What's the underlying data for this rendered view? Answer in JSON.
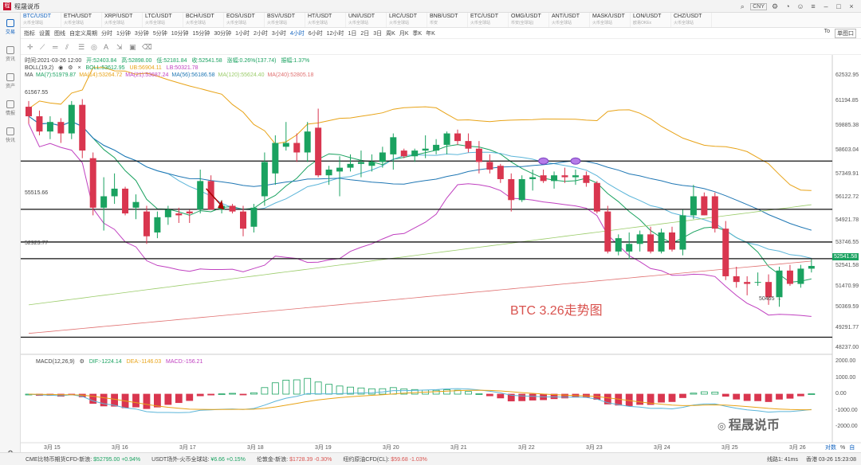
{
  "window": {
    "title": "程晟说币",
    "currency": "CNY"
  },
  "tickers": [
    {
      "symbol": "BTC/USDT",
      "sub": "火币全球站"
    },
    {
      "symbol": "ETH/USDT",
      "sub": "火币全球站"
    },
    {
      "symbol": "XRP/USDT",
      "sub": "火币全球站"
    },
    {
      "symbol": "LTC/USDT",
      "sub": "火币全球站"
    },
    {
      "symbol": "BCH/USDT",
      "sub": "火币全球站"
    },
    {
      "symbol": "EOS/USDT",
      "sub": "火币全球站"
    },
    {
      "symbol": "BSV/USDT",
      "sub": "火币全球站"
    },
    {
      "symbol": "HT/USDT",
      "sub": "火币全球站"
    },
    {
      "symbol": "UNI/USDT",
      "sub": "火币全球站"
    },
    {
      "symbol": "LRC/USDT",
      "sub": "火币全球站"
    },
    {
      "symbol": "BNB/USDT",
      "sub": "币安"
    },
    {
      "symbol": "ETC/USDT",
      "sub": "火币全球站"
    },
    {
      "symbol": "OMG/USDT",
      "sub": "币安(全球站)"
    },
    {
      "symbol": "ANT/USDT",
      "sub": "火币全球站"
    },
    {
      "symbol": "MASK/USDT",
      "sub": "火币全球站"
    },
    {
      "symbol": "LON/USDT",
      "sub": "欧易OKEx"
    },
    {
      "symbol": "CHZ/USDT",
      "sub": "火币全球站"
    }
  ],
  "leftbar": [
    {
      "label": "交易",
      "active": true
    },
    {
      "label": "资讯"
    },
    {
      "label": "资产"
    },
    {
      "label": "情报"
    },
    {
      "label": "快讯"
    }
  ],
  "periodbar": {
    "items": [
      "指标",
      "设置",
      "图线",
      "自定义周期",
      "分时",
      "1分钟",
      "3分钟",
      "5分钟",
      "10分钟",
      "15分钟",
      "30分钟",
      "1小时",
      "2小时",
      "3小时",
      "4小时",
      "6小时",
      "12小时",
      "1日",
      "2日",
      "3日",
      "周K",
      "月K",
      "季K",
      "年K"
    ],
    "active": "4小时",
    "right": [
      "To",
      "单图口"
    ]
  },
  "info": {
    "time": "时间:2021-03-26 12:00",
    "open": "开:52403.84",
    "high": "高:52898.00",
    "low": "低:52181.84",
    "close": "收:52541.58",
    "change": "涨幅:0.26%(137.74)",
    "amplitude": "振幅:1.37%"
  },
  "boll": {
    "label": "BOLL(19,2)",
    "mid": "BOLL:53612.95",
    "ub": "UB:56904.11",
    "lb": "LB:50321.78"
  },
  "ma": {
    "label": "MA",
    "items": [
      {
        "text": "MA(7):51979.87",
        "color": "#1aa260"
      },
      {
        "text": "MA(14):53264.72",
        "color": "#e8a317"
      },
      {
        "text": "MA(21):53687.24",
        "color": "#c040c0"
      },
      {
        "text": "MA(56):56186.58",
        "color": "#1f77b4"
      },
      {
        "text": "MA(120):55624.40",
        "color": "#9bcc6a"
      },
      {
        "text": "MA(240):52805.18",
        "color": "#e07070"
      }
    ]
  },
  "macd": {
    "label": "MACD(12,26,9)",
    "dif": "DIF:-1224.14",
    "dea": "DEA:-1146.03",
    "macd": "MACD:-156.21"
  },
  "labels": {
    "high_mark": "61567.55",
    "low_mark": "50465",
    "h_line_1": "55515.66",
    "h_line_2": "52923.77",
    "annotation": "BTC 3.26走势图",
    "current_price": "52541.58",
    "watermark": "程晟说币"
  },
  "price_axis": [
    "62532.95",
    "61194.85",
    "59885.38",
    "58603.04",
    "57349.91",
    "56122.72",
    "54921.78",
    "53746.55",
    "52541.58",
    "51470.99",
    "50369.59",
    "49291.77",
    "48237.00"
  ],
  "macd_axis": [
    "2000.00",
    "1000.00",
    "0.00",
    "-1000.00",
    "-2000.00"
  ],
  "date_axis": [
    "3月 15",
    "3月 16",
    "3月 17",
    "3月 18",
    "3月 19",
    "3月 20",
    "3月 21",
    "3月 22",
    "3月 23",
    "3月 24",
    "3月 25",
    "3月 26"
  ],
  "bottom_right": [
    "对数",
    "%",
    "自动"
  ],
  "status": {
    "items": [
      {
        "name": "CME比特币期货CFD-新浪:",
        "value": "$52795.00",
        "chg": "+0.94%",
        "dir": "up"
      },
      {
        "name": "USDT场外-火币全球站:",
        "value": "¥6.66",
        "chg": "+0.15%",
        "dir": "up"
      },
      {
        "name": "伦敦金-新浪:",
        "value": "$1728.39",
        "chg": "-0.30%",
        "dir": "dn"
      },
      {
        "name": "纽约原油CFD(CL):",
        "value": "$59.68",
        "chg": "-1.03%",
        "dir": "dn"
      }
    ],
    "line": "线路1: 41ms",
    "clock": "香港 03-26 15:23:08"
  },
  "chart_data": {
    "type": "candlestick",
    "timeframe": "4小时",
    "candles": [
      [
        60900,
        61200,
        60000,
        60400
      ],
      [
        60400,
        60700,
        59400,
        59600
      ],
      [
        59600,
        60400,
        59200,
        60100
      ],
      [
        60100,
        60300,
        59000,
        59500
      ],
      [
        59500,
        61200,
        59200,
        61000
      ],
      [
        61000,
        61300,
        58200,
        58600
      ],
      [
        58200,
        58500,
        55200,
        55600
      ],
      [
        55600,
        57200,
        54400,
        56200
      ],
      [
        56200,
        57400,
        55800,
        56600
      ],
      [
        56600,
        56700,
        55200,
        55300
      ],
      [
        55600,
        56300,
        55000,
        55900
      ],
      [
        55400,
        55700,
        53700,
        54100
      ],
      [
        54300,
        55400,
        54000,
        55100
      ],
      [
        55100,
        55700,
        54700,
        55500
      ],
      [
        55300,
        55600,
        54800,
        55200
      ],
      [
        55400,
        55500,
        54800,
        55300
      ],
      [
        55500,
        57600,
        55300,
        57000
      ],
      [
        57000,
        57300,
        55500,
        55500
      ],
      [
        55500,
        56000,
        55300,
        55700
      ],
      [
        55700,
        55800,
        55300,
        55400
      ],
      [
        55400,
        55700,
        54100,
        54500
      ],
      [
        54600,
        55800,
        54300,
        55600
      ],
      [
        56200,
        58500,
        55700,
        58000
      ],
      [
        57400,
        59400,
        56800,
        59000
      ],
      [
        58800,
        60100,
        58600,
        59000
      ],
      [
        59000,
        59500,
        58000,
        58500
      ],
      [
        58500,
        60100,
        58000,
        59600
      ],
      [
        59800,
        60800,
        57200,
        57300
      ],
      [
        57300,
        57800,
        56800,
        57600
      ],
      [
        57500,
        58300,
        56200,
        57700
      ],
      [
        57700,
        58400,
        57500,
        57900
      ],
      [
        57900,
        58600,
        57200,
        58000
      ],
      [
        57800,
        58400,
        57500,
        58000
      ],
      [
        58000,
        58800,
        57700,
        58500
      ],
      [
        58400,
        59500,
        57600,
        59300
      ],
      [
        58600,
        58700,
        58200,
        58300
      ],
      [
        58300,
        58700,
        58000,
        58600
      ],
      [
        58600,
        59400,
        58200,
        58700
      ],
      [
        58600,
        59200,
        58400,
        58900
      ],
      [
        58900,
        59600,
        58400,
        59500
      ],
      [
        59500,
        59700,
        58900,
        59100
      ],
      [
        59100,
        59500,
        58500,
        58700
      ],
      [
        58700,
        59100,
        57400,
        58000
      ],
      [
        58000,
        58400,
        57400,
        57600
      ],
      [
        57800,
        57900,
        56900,
        57100
      ],
      [
        57100,
        57400,
        55400,
        56000
      ],
      [
        56000,
        57300,
        55900,
        57100
      ],
      [
        57100,
        57600,
        56500,
        57200
      ],
      [
        57300,
        57600,
        56900,
        57000
      ],
      [
        57000,
        57500,
        56600,
        57300
      ],
      [
        57300,
        57700,
        56900,
        57200
      ],
      [
        57200,
        57600,
        56800,
        57300
      ],
      [
        57300,
        57500,
        56700,
        56900
      ],
      [
        56900,
        57000,
        55300,
        55400
      ],
      [
        55400,
        55700,
        53200,
        53300
      ],
      [
        53300,
        54200,
        53100,
        54000
      ],
      [
        53300,
        54300,
        52900,
        53700
      ],
      [
        53700,
        54400,
        53300,
        54200
      ],
      [
        54200,
        54600,
        53200,
        53300
      ],
      [
        53300,
        54500,
        53200,
        54300
      ],
      [
        54300,
        54600,
        53300,
        53400
      ],
      [
        53400,
        55500,
        53100,
        55200
      ],
      [
        55200,
        56800,
        55000,
        56200
      ],
      [
        56200,
        56400,
        55200,
        55200
      ],
      [
        56200,
        56400,
        54300,
        54500
      ],
      [
        54500,
        54900,
        51800,
        52000
      ],
      [
        52000,
        52500,
        51400,
        51700
      ],
      [
        51700,
        52000,
        51000,
        51600
      ],
      [
        51700,
        52200,
        51500,
        51700
      ],
      [
        51700,
        52100,
        50500,
        50900
      ],
      [
        50900,
        52500,
        50400,
        52300
      ],
      [
        52300,
        52600,
        51500,
        51600
      ],
      [
        51600,
        52600,
        51400,
        52400
      ],
      [
        52400,
        52900,
        52200,
        52541.58
      ]
    ],
    "horizontal_lines": [
      58050,
      55515.66,
      53800,
      52923.77,
      48800
    ],
    "price_range": [
      48237,
      62532.95
    ],
    "macd_range": [
      -2000,
      2000
    ]
  }
}
